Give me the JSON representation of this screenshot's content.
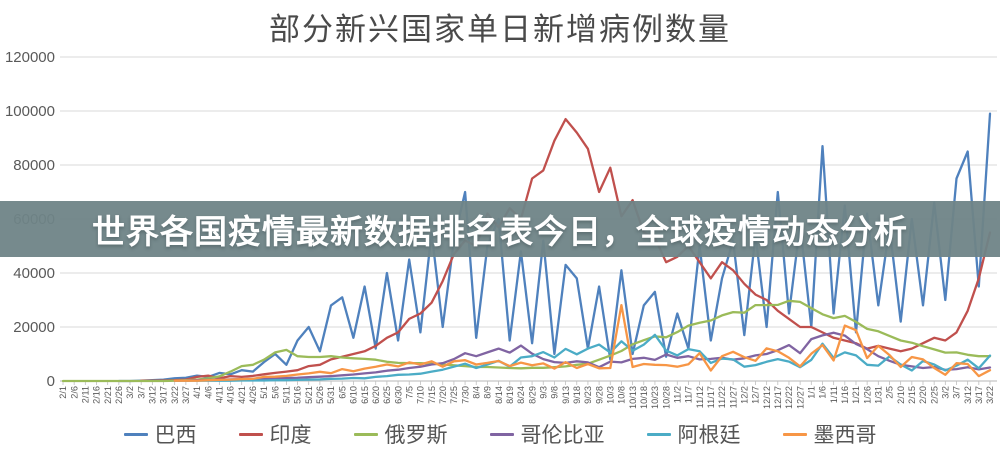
{
  "banner": {
    "text": "世界各国疫情最新数据排名表今日，全球疫情动态分析",
    "bg_color": "#6F8487",
    "bg_opacity": 0.95,
    "text_color": "#ffffff"
  },
  "chart_data": {
    "type": "line",
    "title": "部分新兴国家单日新增病例数量",
    "xlabel": "",
    "ylabel": "",
    "ylim": [
      0,
      120000
    ],
    "y_ticks": [
      0,
      20000,
      40000,
      60000,
      80000,
      100000,
      120000
    ],
    "grid": true,
    "legend_position": "bottom",
    "x_labels": [
      "2/1",
      "2/6",
      "2/11",
      "2/16",
      "2/21",
      "2/26",
      "3/2",
      "3/7",
      "3/12",
      "3/17",
      "3/22",
      "3/27",
      "4/1",
      "4/6",
      "4/11",
      "4/16",
      "4/21",
      "4/26",
      "5/1",
      "5/6",
      "5/11",
      "5/16",
      "5/21",
      "5/26",
      "5/31",
      "6/5",
      "6/10",
      "6/15",
      "6/20",
      "6/25",
      "6/30",
      "7/5",
      "7/10",
      "7/15",
      "7/20",
      "7/25",
      "7/30",
      "8/4",
      "8/9",
      "8/14",
      "8/19",
      "8/24",
      "8/29",
      "9/3",
      "9/8",
      "9/13",
      "9/18",
      "9/23",
      "9/28",
      "10/3",
      "10/8",
      "10/13",
      "10/18",
      "10/23",
      "10/28",
      "11/2",
      "11/7",
      "11/12",
      "11/17",
      "11/22",
      "11/27",
      "12/2",
      "12/7",
      "12/12",
      "12/17",
      "12/22",
      "12/27",
      "1/1",
      "1/6",
      "1/11",
      "1/16",
      "1/21",
      "1/26",
      "1/31",
      "2/5",
      "2/10",
      "2/15",
      "2/20",
      "2/25",
      "3/2",
      "3/7",
      "3/12",
      "3/17",
      "3/22"
    ],
    "series": [
      {
        "name": "巴西",
        "color": "#4F81BD",
        "values": [
          null,
          null,
          null,
          null,
          null,
          0,
          0,
          100,
          300,
          500,
          1000,
          1200,
          2000,
          1500,
          3000,
          2500,
          4000,
          3500,
          7000,
          10000,
          6000,
          15000,
          20000,
          11000,
          28000,
          31000,
          16000,
          35000,
          12000,
          40000,
          15000,
          45000,
          18000,
          55000,
          20000,
          52000,
          70000,
          16000,
          50000,
          60000,
          15000,
          48000,
          14000,
          52000,
          10000,
          43000,
          38000,
          12000,
          35000,
          8000,
          41000,
          10000,
          28000,
          33000,
          9000,
          25000,
          12000,
          50000,
          15000,
          38000,
          52000,
          17000,
          54000,
          20000,
          70000,
          25000,
          58000,
          20000,
          87000,
          25000,
          65000,
          18000,
          62000,
          28000,
          57000,
          22000,
          60000,
          28000,
          66000,
          30000,
          75000,
          85000,
          35000,
          99000
        ]
      },
      {
        "name": "印度",
        "color": "#C0504D",
        "values": [
          null,
          null,
          null,
          null,
          null,
          null,
          null,
          100,
          100,
          200,
          300,
          500,
          1500,
          2000,
          1000,
          1800,
          1500,
          1900,
          2500,
          3000,
          3500,
          4000,
          5500,
          6000,
          8000,
          9000,
          10000,
          11000,
          13000,
          16000,
          18000,
          23000,
          25000,
          29000,
          37000,
          47000,
          52000,
          50000,
          62000,
          57000,
          64000,
          60000,
          75000,
          78000,
          89000,
          97000,
          92000,
          86000,
          70000,
          79000,
          61000,
          67000,
          55000,
          53000,
          44000,
          46000,
          50000,
          44000,
          38000,
          44000,
          41000,
          36000,
          32000,
          30000,
          26000,
          23000,
          20000,
          20000,
          18000,
          16000,
          15000,
          14000,
          12000,
          13000,
          12000,
          11000,
          12000,
          14000,
          16000,
          15000,
          18000,
          26000,
          38000,
          55000
        ]
      },
      {
        "name": "俄罗斯",
        "color": "#9BBB59",
        "values": [
          0,
          0,
          0,
          0,
          0,
          0,
          0,
          0,
          0,
          0,
          100,
          300,
          500,
          1000,
          1700,
          3500,
          5500,
          6000,
          7900,
          10600,
          11500,
          9200,
          8900,
          8900,
          9200,
          8700,
          8400,
          8200,
          7900,
          7100,
          6700,
          6600,
          6600,
          6400,
          6100,
          5800,
          5500,
          5200,
          5200,
          5000,
          4800,
          4700,
          4900,
          4900,
          5100,
          5400,
          6000,
          6400,
          7900,
          9400,
          11100,
          13600,
          15100,
          16500,
          16200,
          18100,
          20500,
          21600,
          22400,
          24300,
          25500,
          25300,
          28100,
          28100,
          28200,
          29700,
          29300,
          27000,
          24700,
          23300,
          24100,
          21900,
          19300,
          18400,
          16700,
          15000,
          14200,
          12900,
          11700,
          10500,
          10600,
          9700,
          9200,
          9200
        ]
      },
      {
        "name": "哥伦比亚",
        "color": "#8064A2",
        "values": [
          null,
          null,
          null,
          null,
          null,
          null,
          null,
          null,
          null,
          null,
          100,
          200,
          300,
          400,
          500,
          600,
          700,
          800,
          900,
          1000,
          1100,
          1200,
          1400,
          1600,
          1800,
          2100,
          2400,
          2800,
          3200,
          3800,
          4200,
          4800,
          5300,
          6100,
          6600,
          8100,
          10300,
          9200,
          10600,
          12000,
          10500,
          13100,
          10100,
          8100,
          7000,
          6700,
          7300,
          6900,
          5100,
          7200,
          6900,
          8200,
          8600,
          7800,
          9800,
          8600,
          9200,
          8000,
          8200,
          8600,
          7900,
          8400,
          9500,
          10000,
          11400,
          13300,
          10300,
          15500,
          16900,
          17900,
          16800,
          13700,
          11800,
          9200,
          7500,
          6000,
          5400,
          4800,
          5200,
          4100,
          4400,
          5100,
          4300,
          5000
        ]
      },
      {
        "name": "阿根廷",
        "color": "#4BACC6",
        "values": [
          null,
          null,
          null,
          null,
          null,
          null,
          null,
          null,
          null,
          null,
          100,
          100,
          100,
          100,
          100,
          100,
          200,
          200,
          200,
          300,
          300,
          400,
          500,
          600,
          800,
          900,
          1100,
          1000,
          1500,
          1800,
          2300,
          2400,
          2700,
          3500,
          4200,
          5300,
          6400,
          4800,
          6100,
          7500,
          5300,
          8700,
          9200,
          10700,
          8700,
          11900,
          9900,
          12000,
          13500,
          10500,
          14700,
          11200,
          13500,
          17100,
          11300,
          9500,
          11800,
          11000,
          6700,
          8300,
          8000,
          5300,
          5900,
          7100,
          8100,
          7200,
          5100,
          7800,
          13800,
          8600,
          10600,
          9500,
          6000,
          5700,
          9100,
          6100,
          3900,
          7400,
          6100,
          3900,
          5700,
          7900,
          4700,
          9400
        ]
      },
      {
        "name": "墨西哥",
        "color": "#F79646",
        "values": [
          null,
          null,
          null,
          null,
          null,
          null,
          null,
          null,
          null,
          null,
          100,
          100,
          100,
          300,
          400,
          500,
          700,
          800,
          1500,
          1600,
          1900,
          2400,
          2800,
          3400,
          2900,
          4400,
          3600,
          4600,
          5300,
          6100,
          5400,
          6900,
          6100,
          7300,
          5300,
          7300,
          7700,
          6100,
          6700,
          7400,
          5500,
          6800,
          5800,
          6500,
          4600,
          7000,
          4800,
          6300,
          4700,
          4800,
          28100,
          5200,
          6300,
          6000,
          5900,
          5300,
          6200,
          10300,
          3900,
          9200,
          10800,
          8800,
          7500,
          12100,
          11000,
          8600,
          5400,
          10100,
          13300,
          7600,
          20500,
          18800,
          8500,
          13000,
          9600,
          5200,
          8900,
          8000,
          4800,
          2300,
          6600,
          6300,
          1800,
          4000
        ]
      }
    ],
    "style": {
      "gridline_color": "#d9d9d9",
      "axis_color": "#b7b7b7",
      "tick_color": "#bfbfbf",
      "line_width": 2.3
    }
  }
}
